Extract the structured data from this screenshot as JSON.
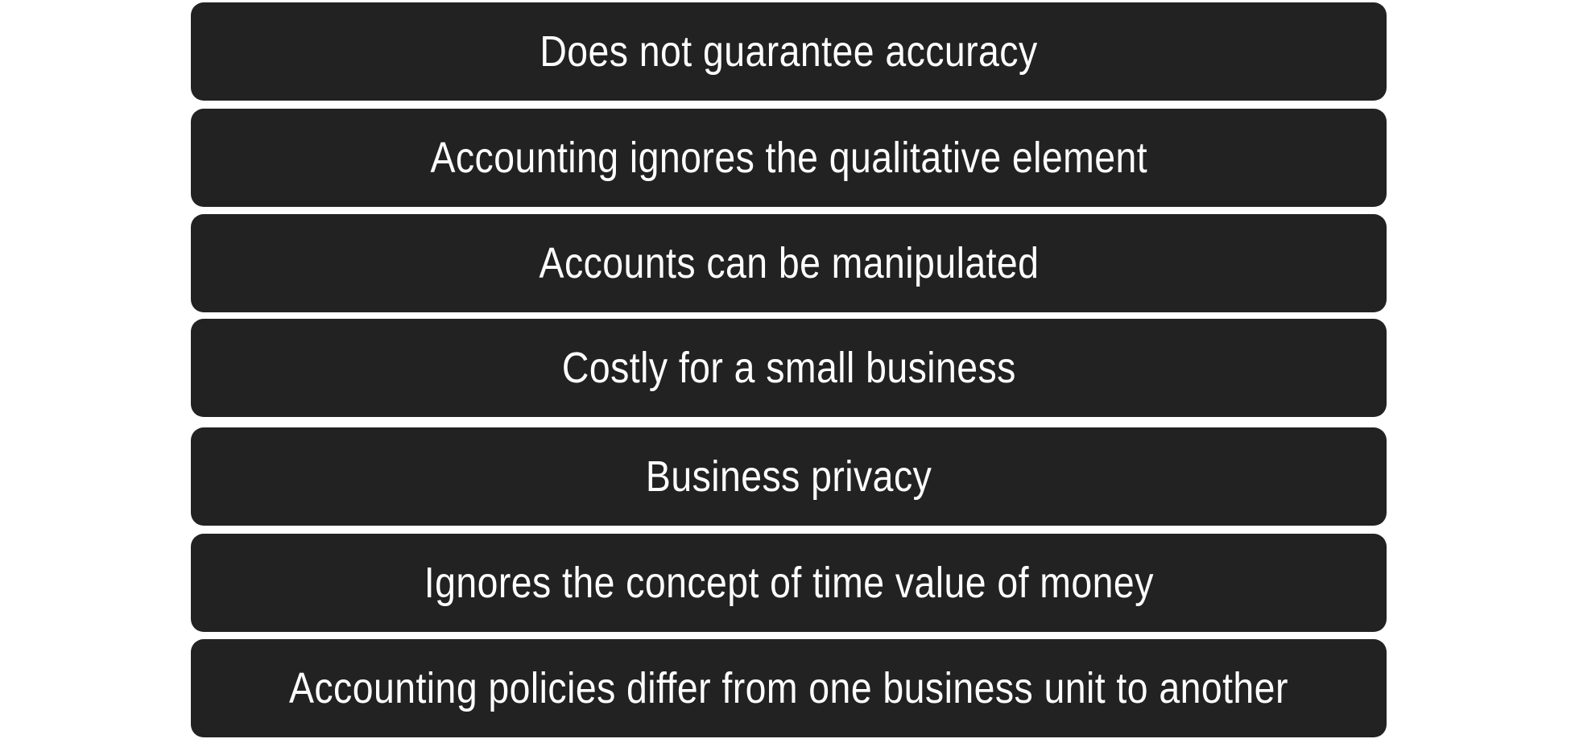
{
  "items": [
    {
      "label": "Does not guarantee accuracy"
    },
    {
      "label": "Accounting ignores the qualitative element"
    },
    {
      "label": "Accounts can be manipulated"
    },
    {
      "label": "Costly for a small business"
    },
    {
      "label": "Business privacy"
    },
    {
      "label": "Ignores the concept of time value of money"
    },
    {
      "label": "Accounting policies differ from one business unit to another"
    }
  ]
}
